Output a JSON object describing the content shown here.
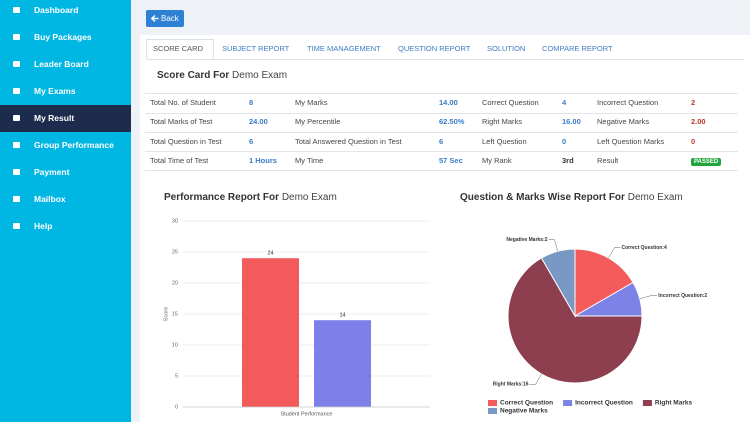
{
  "sidebar": {
    "items": [
      "Dashboard",
      "Buy Packages",
      "Leader Board",
      "My Exams",
      "My Result",
      "Group Performance",
      "Payment",
      "Mailbox",
      "Help"
    ],
    "active": 4
  },
  "back_button": "Back",
  "tabs": {
    "items": [
      "SCORE CARD",
      "SUBJECT REPORT",
      "TIME MANAGEMENT",
      "QUESTION REPORT",
      "SOLUTION",
      "COMPARE REPORT"
    ],
    "active": 0
  },
  "score_card": {
    "title_bold": "Score Card For",
    "title_exam": "Demo Exam",
    "rows": [
      [
        "Total No. of Student",
        "8",
        "My Marks",
        "14.00",
        "Correct Question",
        "4",
        "Incorrect Question",
        "2"
      ],
      [
        "Total Marks of Test",
        "24.00",
        "My Percentile",
        "62.50%",
        "Right Marks",
        "16.00",
        "Negative Marks",
        "2.00"
      ],
      [
        "Total Question in Test",
        "6",
        "Total Answered Question in Test",
        "6",
        "Left Question",
        "0",
        "Left Question Marks",
        "0"
      ],
      [
        "Total Time of Test",
        "1 Hours",
        "My Time",
        "57 Sec",
        "My Rank",
        "3rd",
        "Result",
        "PASSED"
      ]
    ]
  },
  "chart_data": [
    {
      "type": "bar",
      "title_bold": "Performance Report For",
      "title_exam": "Demo Exam",
      "categories": [
        "Student Performance"
      ],
      "series": [
        {
          "color": "#f25a5c",
          "values": [
            24
          ]
        },
        {
          "color": "#7c80e8",
          "values": [
            14
          ]
        }
      ],
      "ylabel": "Score",
      "ylim": [
        0,
        30
      ],
      "yticks": [
        0,
        5,
        10,
        15,
        20,
        25,
        30
      ],
      "grid": true
    },
    {
      "type": "pie",
      "title_bold": "Question & Marks Wise Report For",
      "title_exam": "Demo Exam",
      "categories": [
        "Correct Question",
        "Incorrect Question",
        "Right Marks",
        "Negative Marks"
      ],
      "values": [
        4,
        2,
        16,
        2
      ],
      "value_labels": [
        "Correct Question:4",
        "Incorrect Question:2",
        "Right Marks:16",
        "Negative Marks:2"
      ],
      "colors": [
        "#f45b5b",
        "#7c82e6",
        "#8d3f4f",
        "#7a98c4"
      ]
    }
  ]
}
